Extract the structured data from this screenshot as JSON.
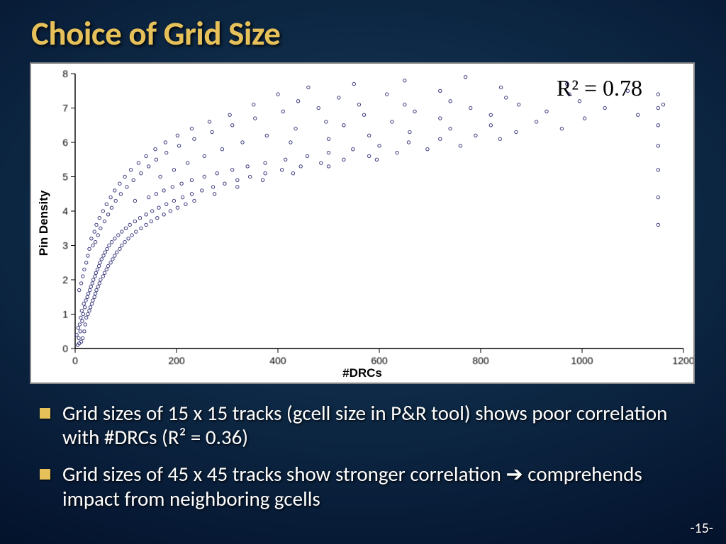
{
  "slide": {
    "title": "Choice of Grid Size",
    "page_label": "-15-",
    "title_color": "#e6c15a",
    "background_gradient": [
      "#1a3a5c",
      "#051530"
    ],
    "bullets": [
      "Grid sizes of 15 x 15 tracks (gcell size in P&R tool) shows poor correlation with #DRCs (R² = 0.36)",
      "Grid sizes of 45 x 45 tracks show stronger correlation ➔ comprehends impact from neighboring gcells"
    ]
  },
  "chart": {
    "type": "scatter",
    "xlabel": "#DRCs",
    "ylabel": "Pin Density",
    "r2_text": "R² = 0.78",
    "background_color": "#ffffff",
    "axis_color": "#000000",
    "marker_color": "#1a1a6a",
    "marker_size": 2.2,
    "marker_opacity": 0.85,
    "xlim": [
      0,
      1200
    ],
    "ylim": [
      0,
      8
    ],
    "xticks": [
      0,
      200,
      400,
      600,
      800,
      1000,
      1200
    ],
    "yticks": [
      0,
      1,
      2,
      3,
      4,
      5,
      6,
      7,
      8
    ],
    "points": [
      [
        5,
        0.1
      ],
      [
        8,
        0.15
      ],
      [
        7,
        0.3
      ],
      [
        12,
        0.2
      ],
      [
        3,
        0.4
      ],
      [
        10,
        0.5
      ],
      [
        15,
        0.3
      ],
      [
        6,
        0.6
      ],
      [
        18,
        0.5
      ],
      [
        9,
        0.7
      ],
      [
        14,
        0.8
      ],
      [
        20,
        0.7
      ],
      [
        11,
        0.9
      ],
      [
        22,
        0.9
      ],
      [
        16,
        1.0
      ],
      [
        25,
        1.0
      ],
      [
        13,
        1.1
      ],
      [
        28,
        1.1
      ],
      [
        19,
        1.2
      ],
      [
        30,
        1.2
      ],
      [
        17,
        1.3
      ],
      [
        33,
        1.3
      ],
      [
        21,
        1.4
      ],
      [
        35,
        1.4
      ],
      [
        24,
        1.5
      ],
      [
        38,
        1.5
      ],
      [
        26,
        1.6
      ],
      [
        40,
        1.6
      ],
      [
        8,
        1.7
      ],
      [
        29,
        1.7
      ],
      [
        42,
        1.7
      ],
      [
        31,
        1.8
      ],
      [
        45,
        1.8
      ],
      [
        12,
        1.9
      ],
      [
        34,
        1.9
      ],
      [
        48,
        1.9
      ],
      [
        36,
        2.0
      ],
      [
        50,
        2.0
      ],
      [
        15,
        2.1
      ],
      [
        39,
        2.1
      ],
      [
        55,
        2.1
      ],
      [
        41,
        2.2
      ],
      [
        58,
        2.2
      ],
      [
        18,
        2.3
      ],
      [
        44,
        2.3
      ],
      [
        62,
        2.3
      ],
      [
        47,
        2.4
      ],
      [
        65,
        2.4
      ],
      [
        22,
        2.5
      ],
      [
        49,
        2.5
      ],
      [
        70,
        2.5
      ],
      [
        52,
        2.6
      ],
      [
        74,
        2.6
      ],
      [
        25,
        2.7
      ],
      [
        56,
        2.7
      ],
      [
        78,
        2.7
      ],
      [
        59,
        2.8
      ],
      [
        82,
        2.8
      ],
      [
        28,
        2.9
      ],
      [
        63,
        2.9
      ],
      [
        88,
        2.9
      ],
      [
        35,
        3.0
      ],
      [
        67,
        3.0
      ],
      [
        92,
        3.0
      ],
      [
        40,
        3.1
      ],
      [
        72,
        3.1
      ],
      [
        98,
        3.1
      ],
      [
        32,
        3.2
      ],
      [
        78,
        3.2
      ],
      [
        105,
        3.2
      ],
      [
        45,
        3.3
      ],
      [
        85,
        3.3
      ],
      [
        112,
        3.3
      ],
      [
        38,
        3.4
      ],
      [
        92,
        3.4
      ],
      [
        120,
        3.4
      ],
      [
        50,
        3.5
      ],
      [
        100,
        3.5
      ],
      [
        130,
        3.5
      ],
      [
        42,
        3.6
      ],
      [
        108,
        3.6
      ],
      [
        140,
        3.6
      ],
      [
        58,
        3.7
      ],
      [
        118,
        3.7
      ],
      [
        150,
        3.7
      ],
      [
        48,
        3.8
      ],
      [
        128,
        3.8
      ],
      [
        162,
        3.8
      ],
      [
        65,
        3.9
      ],
      [
        140,
        3.9
      ],
      [
        175,
        3.9
      ],
      [
        55,
        4.0
      ],
      [
        152,
        4.0
      ],
      [
        188,
        4.0
      ],
      [
        72,
        4.1
      ],
      [
        165,
        4.1
      ],
      [
        202,
        4.1
      ],
      [
        62,
        4.2
      ],
      [
        180,
        4.2
      ],
      [
        218,
        4.2
      ],
      [
        80,
        4.3
      ],
      [
        118,
        4.3
      ],
      [
        195,
        4.3
      ],
      [
        235,
        4.3
      ],
      [
        70,
        4.4
      ],
      [
        145,
        4.4
      ],
      [
        212,
        4.4
      ],
      [
        90,
        4.5
      ],
      [
        160,
        4.5
      ],
      [
        230,
        4.5
      ],
      [
        275,
        4.5
      ],
      [
        78,
        4.6
      ],
      [
        175,
        4.6
      ],
      [
        250,
        4.6
      ],
      [
        102,
        4.7
      ],
      [
        192,
        4.7
      ],
      [
        272,
        4.7
      ],
      [
        320,
        4.7
      ],
      [
        88,
        4.8
      ],
      [
        210,
        4.8
      ],
      [
        295,
        4.8
      ],
      [
        115,
        4.9
      ],
      [
        230,
        4.9
      ],
      [
        320,
        4.9
      ],
      [
        370,
        4.9
      ],
      [
        98,
        5.0
      ],
      [
        168,
        5.0
      ],
      [
        255,
        5.0
      ],
      [
        345,
        5.0
      ],
      [
        130,
        5.1
      ],
      [
        280,
        5.1
      ],
      [
        375,
        5.1
      ],
      [
        430,
        5.1
      ],
      [
        110,
        5.2
      ],
      [
        195,
        5.2
      ],
      [
        310,
        5.2
      ],
      [
        408,
        5.2
      ],
      [
        145,
        5.3
      ],
      [
        340,
        5.3
      ],
      [
        445,
        5.3
      ],
      [
        500,
        5.3
      ],
      [
        125,
        5.4
      ],
      [
        222,
        5.4
      ],
      [
        375,
        5.4
      ],
      [
        485,
        5.4
      ],
      [
        160,
        5.5
      ],
      [
        415,
        5.5
      ],
      [
        530,
        5.5
      ],
      [
        595,
        5.5
      ],
      [
        140,
        5.6
      ],
      [
        255,
        5.6
      ],
      [
        458,
        5.6
      ],
      [
        580,
        5.6
      ],
      [
        180,
        5.7
      ],
      [
        500,
        5.7
      ],
      [
        635,
        5.7
      ],
      [
        158,
        5.8
      ],
      [
        290,
        5.8
      ],
      [
        548,
        5.8
      ],
      [
        695,
        5.8
      ],
      [
        205,
        5.9
      ],
      [
        600,
        5.9
      ],
      [
        760,
        5.9
      ],
      [
        178,
        6.0
      ],
      [
        330,
        6.0
      ],
      [
        425,
        6.0
      ],
      [
        658,
        6.0
      ],
      [
        235,
        6.1
      ],
      [
        500,
        6.1
      ],
      [
        720,
        6.1
      ],
      [
        838,
        6.1
      ],
      [
        202,
        6.2
      ],
      [
        378,
        6.2
      ],
      [
        580,
        6.2
      ],
      [
        790,
        6.2
      ],
      [
        270,
        6.3
      ],
      [
        660,
        6.3
      ],
      [
        870,
        6.3
      ],
      [
        230,
        6.4
      ],
      [
        435,
        6.4
      ],
      [
        740,
        6.4
      ],
      [
        960,
        6.4
      ],
      [
        310,
        6.5
      ],
      [
        530,
        6.5
      ],
      [
        820,
        6.5
      ],
      [
        265,
        6.6
      ],
      [
        495,
        6.6
      ],
      [
        625,
        6.6
      ],
      [
        910,
        6.6
      ],
      [
        355,
        6.7
      ],
      [
        720,
        6.7
      ],
      [
        1005,
        6.7
      ],
      [
        305,
        6.8
      ],
      [
        570,
        6.8
      ],
      [
        820,
        6.8
      ],
      [
        410,
        6.9
      ],
      [
        670,
        6.9
      ],
      [
        930,
        6.9
      ],
      [
        1110,
        6.8
      ],
      [
        480,
        7.0
      ],
      [
        780,
        7.0
      ],
      [
        1045,
        7.0
      ],
      [
        352,
        7.1
      ],
      [
        560,
        7.1
      ],
      [
        650,
        7.1
      ],
      [
        875,
        7.1
      ],
      [
        440,
        7.2
      ],
      [
        740,
        7.2
      ],
      [
        995,
        7.2
      ],
      [
        1160,
        7.1
      ],
      [
        520,
        7.3
      ],
      [
        850,
        7.3
      ],
      [
        615,
        7.4
      ],
      [
        975,
        7.4
      ],
      [
        400,
        7.4
      ],
      [
        720,
        7.5
      ],
      [
        460,
        7.6
      ],
      [
        840,
        7.6
      ],
      [
        1090,
        7.5
      ],
      [
        550,
        7.7
      ],
      [
        970,
        7.7
      ],
      [
        650,
        7.8
      ],
      [
        770,
        7.9
      ],
      [
        1150,
        3.6
      ],
      [
        1150,
        4.4
      ],
      [
        1150,
        5.2
      ],
      [
        1150,
        5.9
      ],
      [
        1150,
        6.5
      ],
      [
        1150,
        7.0
      ],
      [
        1150,
        7.4
      ]
    ]
  }
}
